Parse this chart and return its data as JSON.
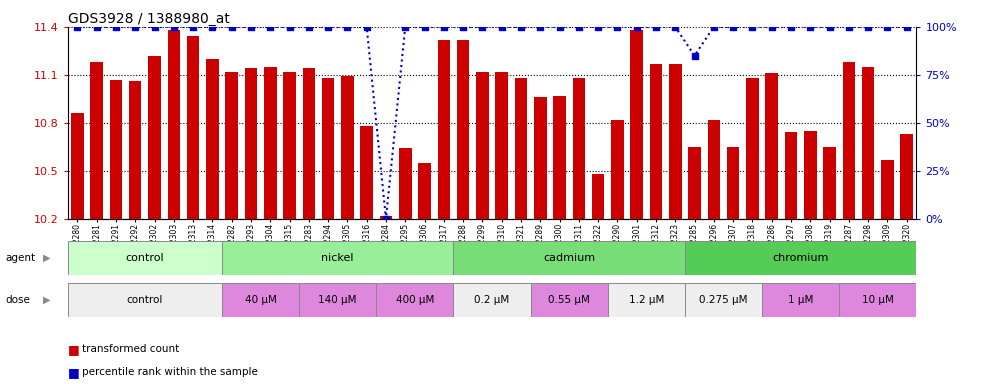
{
  "title": "GDS3928 / 1388980_at",
  "samples": [
    "GSM782280",
    "GSM782281",
    "GSM782291",
    "GSM782292",
    "GSM782302",
    "GSM782303",
    "GSM782313",
    "GSM782314",
    "GSM782282",
    "GSM782293",
    "GSM782304",
    "GSM782315",
    "GSM782283",
    "GSM782294",
    "GSM782305",
    "GSM782316",
    "GSM782284",
    "GSM782295",
    "GSM782306",
    "GSM782317",
    "GSM782288",
    "GSM782299",
    "GSM782310",
    "GSM782321",
    "GSM782289",
    "GSM782300",
    "GSM782311",
    "GSM782322",
    "GSM782290",
    "GSM782301",
    "GSM782312",
    "GSM782323",
    "GSM782285",
    "GSM782296",
    "GSM782307",
    "GSM782318",
    "GSM782286",
    "GSM782297",
    "GSM782308",
    "GSM782319",
    "GSM782287",
    "GSM782298",
    "GSM782309",
    "GSM782320"
  ],
  "bar_values": [
    10.86,
    11.18,
    11.07,
    11.06,
    11.22,
    11.38,
    11.34,
    11.2,
    11.12,
    11.14,
    11.15,
    11.12,
    11.14,
    11.08,
    11.09,
    10.78,
    10.22,
    10.64,
    10.55,
    11.32,
    11.32,
    11.12,
    11.12,
    11.08,
    10.96,
    10.97,
    11.08,
    10.48,
    10.82,
    11.38,
    11.17,
    11.17,
    10.65,
    10.82,
    10.65,
    11.08,
    11.11,
    10.74,
    10.75,
    10.65,
    11.18,
    11.15,
    10.57,
    10.73
  ],
  "percentile_values": [
    100,
    100,
    100,
    100,
    100,
    100,
    100,
    100,
    100,
    100,
    100,
    100,
    100,
    100,
    100,
    100,
    0,
    100,
    100,
    100,
    100,
    100,
    100,
    100,
    100,
    100,
    100,
    100,
    100,
    100,
    100,
    100,
    85,
    100,
    100,
    100,
    100,
    100,
    100,
    100,
    100,
    100,
    100,
    100
  ],
  "ylim_left": [
    10.2,
    11.4
  ],
  "ylim_right": [
    0,
    100
  ],
  "yticks_left": [
    10.2,
    10.5,
    10.8,
    11.1,
    11.4
  ],
  "yticks_right": [
    0,
    25,
    50,
    75,
    100
  ],
  "bar_color": "#cc0000",
  "percentile_color": "#0000cc",
  "background_color": "#ffffff",
  "agents": [
    {
      "label": "control",
      "start": 0,
      "end": 8,
      "color": "#ccffcc"
    },
    {
      "label": "nickel",
      "start": 8,
      "end": 20,
      "color": "#99ee99"
    },
    {
      "label": "cadmium",
      "start": 20,
      "end": 32,
      "color": "#77dd77"
    },
    {
      "label": "chromium",
      "start": 32,
      "end": 44,
      "color": "#55cc55"
    }
  ],
  "doses": [
    {
      "label": "control",
      "start": 0,
      "end": 8,
      "color": "#eeeeee"
    },
    {
      "label": "40 μM",
      "start": 8,
      "end": 12,
      "color": "#dd88dd"
    },
    {
      "label": "140 μM",
      "start": 12,
      "end": 16,
      "color": "#dd88dd"
    },
    {
      "label": "400 μM",
      "start": 16,
      "end": 20,
      "color": "#dd88dd"
    },
    {
      "label": "0.2 μM",
      "start": 20,
      "end": 24,
      "color": "#eeeeee"
    },
    {
      "label": "0.55 μM",
      "start": 24,
      "end": 28,
      "color": "#dd88dd"
    },
    {
      "label": "1.2 μM",
      "start": 28,
      "end": 32,
      "color": "#eeeeee"
    },
    {
      "label": "0.275 μM",
      "start": 32,
      "end": 36,
      "color": "#eeeeee"
    },
    {
      "label": "1 μM",
      "start": 36,
      "end": 40,
      "color": "#dd88dd"
    },
    {
      "label": "10 μM",
      "start": 40,
      "end": 44,
      "color": "#dd88dd"
    }
  ]
}
